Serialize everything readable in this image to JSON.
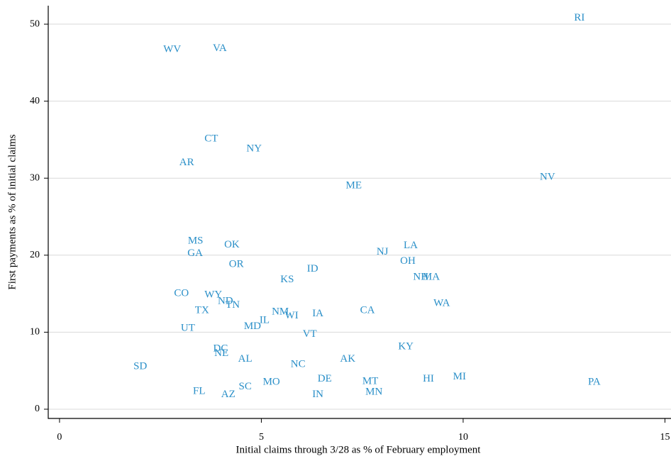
{
  "chart_data": {
    "type": "scatter",
    "x_label": "Initial claims through 3/28 as % of February employment",
    "y_label": "First payments as % of initial claims",
    "color": "#2a8fc8",
    "grid": true,
    "xlim": [
      -0.28,
      15.15
    ],
    "ylim": [
      -1.2,
      52.4
    ],
    "xticks": [
      0,
      5,
      10,
      15
    ],
    "yticks": [
      0,
      10,
      20,
      30,
      40,
      50
    ],
    "labels": [
      "RI",
      "WV",
      "VA",
      "CT",
      "NY",
      "AR",
      "NV",
      "ME",
      "MS",
      "OK",
      "LA",
      "GA",
      "NJ",
      "OH",
      "OR",
      "ID",
      "KS",
      "NH",
      "MA",
      "CO",
      "WY",
      "ND",
      "TN",
      "WA",
      "TX",
      "NM",
      "CA",
      "IA",
      "WI",
      "IL",
      "MD",
      "UT",
      "VT",
      "KY",
      "DC",
      "NE",
      "AK",
      "AL",
      "NC",
      "SD",
      "MI",
      "HI",
      "DE",
      "MT",
      "PA",
      "MO",
      "SC",
      "FL",
      "MN",
      "IN",
      "AZ"
    ],
    "x": [
      12.88,
      2.79,
      3.97,
      3.76,
      4.82,
      3.15,
      12.09,
      7.29,
      3.37,
      4.27,
      8.7,
      3.36,
      8.0,
      8.63,
      4.38,
      6.27,
      5.64,
      8.95,
      9.21,
      3.02,
      3.81,
      4.11,
      4.29,
      9.47,
      3.53,
      5.47,
      7.63,
      6.4,
      5.75,
      5.08,
      4.78,
      3.18,
      6.2,
      8.58,
      3.99,
      4.01,
      7.14,
      4.6,
      5.91,
      2.0,
      9.91,
      9.14,
      6.57,
      7.7,
      13.25,
      5.25,
      4.6,
      3.46,
      7.79,
      6.4,
      4.18
    ],
    "y": [
      50.8,
      46.7,
      46.8,
      35.1,
      33.8,
      32.0,
      30.1,
      29.0,
      21.8,
      21.3,
      21.2,
      20.2,
      20.4,
      19.2,
      18.8,
      18.2,
      16.8,
      17.1,
      17.1,
      15.0,
      14.8,
      14.0,
      13.5,
      13.7,
      12.8,
      12.6,
      12.8,
      12.4,
      12.1,
      11.5,
      10.7,
      10.5,
      9.7,
      8.1,
      7.8,
      7.2,
      6.5,
      6.5,
      5.8,
      5.5,
      4.2,
      3.9,
      3.9,
      3.6,
      3.5,
      3.5,
      2.9,
      2.3,
      2.2,
      1.9,
      1.9
    ]
  }
}
